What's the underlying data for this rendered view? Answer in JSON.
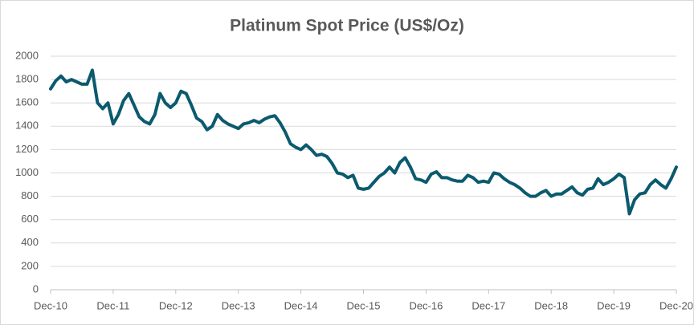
{
  "chart_data": {
    "type": "line",
    "title": "Platinum Spot Price (US$/Oz)",
    "categories": [
      "Dec-10",
      null,
      null,
      null,
      null,
      null,
      null,
      null,
      null,
      null,
      null,
      null,
      "Dec-11",
      null,
      null,
      null,
      null,
      null,
      null,
      null,
      null,
      null,
      null,
      null,
      "Dec-12",
      null,
      null,
      null,
      null,
      null,
      null,
      null,
      null,
      null,
      null,
      null,
      "Dec-13",
      null,
      null,
      null,
      null,
      null,
      null,
      null,
      null,
      null,
      null,
      null,
      "Dec-14",
      null,
      null,
      null,
      null,
      null,
      null,
      null,
      null,
      null,
      null,
      null,
      "Dec-15",
      null,
      null,
      null,
      null,
      null,
      null,
      null,
      null,
      null,
      null,
      null,
      "Dec-16",
      null,
      null,
      null,
      null,
      null,
      null,
      null,
      null,
      null,
      null,
      null,
      "Dec-17",
      null,
      null,
      null,
      null,
      null,
      null,
      null,
      null,
      null,
      null,
      null,
      "Dec-18",
      null,
      null,
      null,
      null,
      null,
      null,
      null,
      null,
      null,
      null,
      null,
      "Dec-19",
      null,
      null,
      null,
      null,
      null,
      null,
      null,
      null,
      null,
      null,
      null,
      "Dec-20"
    ],
    "values": [
      1720,
      1790,
      1830,
      1780,
      1800,
      1780,
      1760,
      1760,
      1880,
      1600,
      1550,
      1600,
      1420,
      1500,
      1620,
      1680,
      1580,
      1480,
      1440,
      1420,
      1500,
      1680,
      1600,
      1560,
      1600,
      1700,
      1680,
      1580,
      1470,
      1440,
      1370,
      1400,
      1500,
      1450,
      1420,
      1400,
      1380,
      1420,
      1430,
      1450,
      1430,
      1460,
      1480,
      1490,
      1430,
      1350,
      1250,
      1220,
      1200,
      1240,
      1200,
      1150,
      1160,
      1140,
      1080,
      1000,
      990,
      960,
      980,
      870,
      860,
      870,
      920,
      970,
      1000,
      1050,
      1000,
      1090,
      1130,
      1050,
      950,
      940,
      920,
      990,
      1010,
      960,
      960,
      940,
      930,
      930,
      980,
      960,
      920,
      930,
      920,
      1000,
      990,
      950,
      920,
      900,
      870,
      830,
      800,
      800,
      830,
      850,
      800,
      820,
      820,
      850,
      880,
      830,
      810,
      860,
      870,
      950,
      900,
      920,
      950,
      990,
      960,
      650,
      770,
      820,
      830,
      900,
      940,
      900,
      870,
      950,
      1050
    ],
    "color": "#0b5a6e",
    "ylim": [
      0,
      2000
    ],
    "yticks": [
      0,
      200,
      400,
      600,
      800,
      1000,
      1200,
      1400,
      1600,
      1800,
      2000
    ],
    "grid": true
  }
}
